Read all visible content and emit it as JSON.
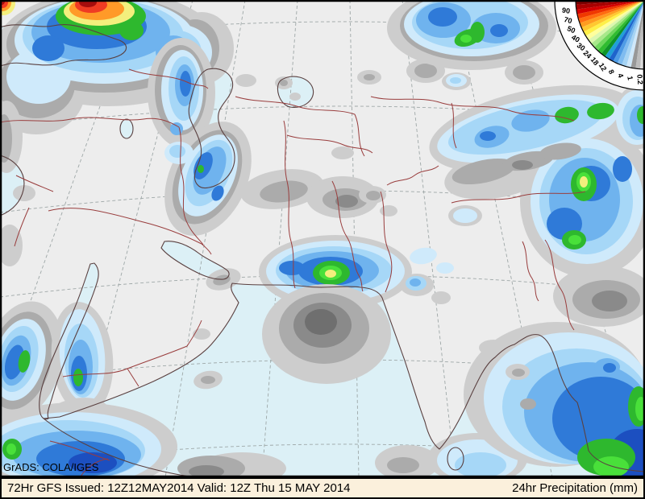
{
  "credit": "GrADS: COLA/IGES",
  "footer": {
    "left": "72Hr GFS Issued: 12Z12MAY2014 Valid: 12Z Thu 15 MAY 2014",
    "right": "24hr Precipitation (mm)"
  },
  "legend": {
    "values": [
      "90",
      "70",
      "50",
      "40",
      "30",
      "24",
      "18",
      "12",
      "8",
      "4",
      "1",
      "0.2"
    ],
    "colors": [
      "#7a0000",
      "#a80000",
      "#d40000",
      "#f03800",
      "#ff6c10",
      "#ff9c20",
      "#ffc830",
      "#fff048",
      "#ffff9c",
      "#ddf7b0",
      "#a8e88a",
      "#6ed75c",
      "#30bc30",
      "#0f9428",
      "#20a0d8",
      "#1e64cc",
      "#4f9ce6",
      "#7fbcf0",
      "#a6d4f4",
      "#cfe8fa",
      "#989898",
      "#bcbcbc",
      "#dcdcdc"
    ]
  },
  "palette": {
    "land": "#ededed",
    "ocean": "#dcf0f6",
    "coast": "#5a4040",
    "border": "#993d3d",
    "grid": "#9aa3a3",
    "barbg": "#fbf0dc",
    "g1": "#cdcdcd",
    "g2": "#ababab",
    "g3": "#8a8a8a",
    "g4": "#6f6f6f",
    "b0": "#cfeafb",
    "b1": "#a6d7f7",
    "b2": "#6fb3ee",
    "b3": "#2f7ad8",
    "b4": "#1c4fc0",
    "gr1": "#2eb82e",
    "gr2": "#49e03a",
    "yl": "#f3ef7d",
    "or": "#ff9a28",
    "rd": "#ef3b23",
    "dr": "#a50d0d"
  }
}
